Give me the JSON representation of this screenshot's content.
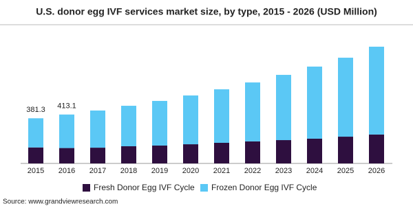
{
  "chart_data": {
    "type": "bar",
    "stacked": true,
    "title": "U.S. donor egg IVF services market size, by type, 2015 - 2026 (USD Million)",
    "categories": [
      "2015",
      "2016",
      "2017",
      "2018",
      "2019",
      "2020",
      "2021",
      "2022",
      "2023",
      "2024",
      "2025",
      "2026"
    ],
    "series": [
      {
        "name": "Fresh Donor Egg IVF Cycle",
        "color": "#2e0f3f",
        "values": [
          135,
          130,
          133,
          145,
          151,
          162,
          174,
          186,
          197,
          209,
          226,
          244
        ]
      },
      {
        "name": "Frozen Donor Egg IVF Cycle",
        "color": "#5bc8f5",
        "values": [
          246.3,
          283.1,
          314,
          342,
          377,
          412,
          452,
          498,
          551,
          609,
          667,
          742
        ]
      }
    ],
    "totals": [
      381.3,
      413.1,
      null,
      null,
      null,
      null,
      null,
      null,
      null,
      null,
      null,
      null
    ],
    "source": "Source: www.grandviewresearch.com"
  }
}
